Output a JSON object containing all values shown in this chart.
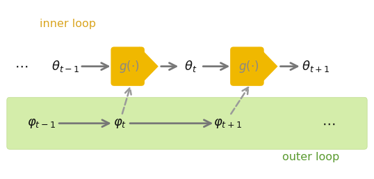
{
  "bg_color": "#ffffff",
  "inner_loop_label_color": "#DAA520",
  "outer_loop_label_color": "#5a9a30",
  "green_box_color": "#d4edaa",
  "green_box_edge": "#c0dc90",
  "gold_box_color": "#f0b800",
  "arrow_color": "#777777",
  "dashed_arrow_color": "#999999",
  "text_color": "#111111",
  "g_text_color": "#888888",
  "figsize": [
    5.38,
    2.58
  ],
  "dpi": 100,
  "xlim": [
    0,
    10
  ],
  "ylim": [
    0,
    5
  ],
  "inner_loop_label": "inner loop",
  "outer_loop_label": "outer loop"
}
